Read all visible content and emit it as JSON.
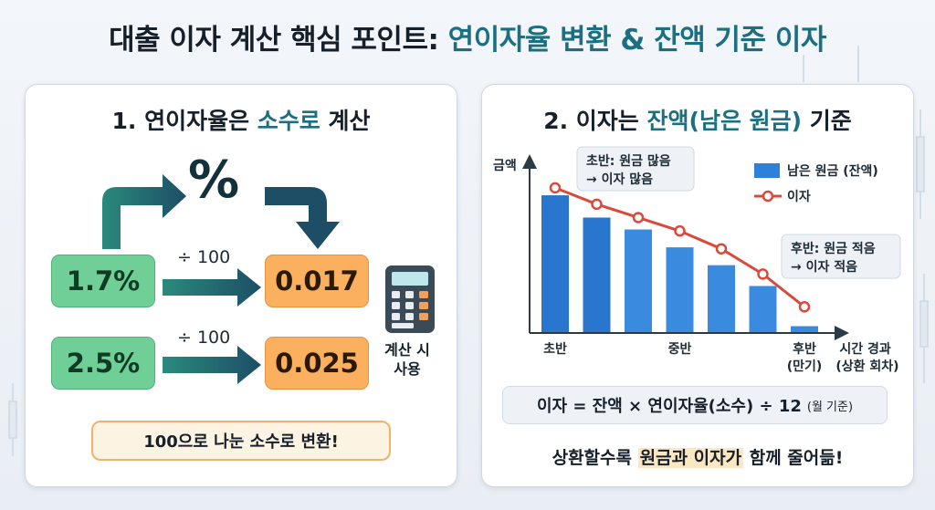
{
  "title": {
    "part1": "대출 이자 계산 핵심 포인트: ",
    "part2": "연이자율 변환 & 잔액 기준 이자"
  },
  "left": {
    "title_pre": "1. 연이자율은 ",
    "title_hl": "소수로",
    "title_post": " 계산",
    "percent_symbol": "%",
    "conversions": [
      {
        "input": "1.7%",
        "operation": "÷ 100",
        "output": "0.017"
      },
      {
        "input": "2.5%",
        "operation": "÷ 100",
        "output": "0.025"
      }
    ],
    "calculator_label_line1": "계산 시",
    "calculator_label_line2": "사용",
    "note": "100으로 나눈 소수로 변환!",
    "colors": {
      "green": "#6fcf97",
      "orange": "#fbb060",
      "arrow": "#1d4e66"
    }
  },
  "right": {
    "title_pre": "2. 이자는 ",
    "title_hl": "잔액(남은 원금)",
    "title_post": " 기준",
    "formula": "이자 = 잔액 × 연이자율(소수) ÷ 12",
    "formula_note": "(월 기준)",
    "summary_pre": "상환할수록 ",
    "summary_hl": "원금과 이자가",
    "summary_post": " 함께 줄어듦!"
  },
  "chart_data": {
    "type": "bar",
    "ylabel": "금액",
    "xlabel": "시간 경과 (상환 회차)",
    "xlabel_line1": "시간 경과",
    "xlabel_line2": "(상환 회차)",
    "x_ticks": [
      {
        "index": 0,
        "label": "초반",
        "label2": ""
      },
      {
        "index": 3,
        "label": "중반",
        "label2": ""
      },
      {
        "index": 6,
        "label": "후반",
        "label2": "(만기)"
      }
    ],
    "ylim": [
      0,
      100
    ],
    "series": [
      {
        "name": "남은 원금 (잔액)",
        "kind": "bar",
        "color": "#2f80d8",
        "values": [
          92,
          77,
          69,
          57,
          45,
          31,
          4
        ]
      },
      {
        "name": "이자",
        "kind": "line",
        "color": "#d94a3d",
        "values": [
          97,
          86,
          77,
          68,
          56,
          39,
          17
        ]
      }
    ],
    "annotations": [
      {
        "line1": "초반: 원금 많음",
        "line2": "→ 이자 많음"
      },
      {
        "line1": "후반: 원금 적음",
        "line2": "→ 이자 적음"
      }
    ],
    "legend_position": "top-right"
  }
}
